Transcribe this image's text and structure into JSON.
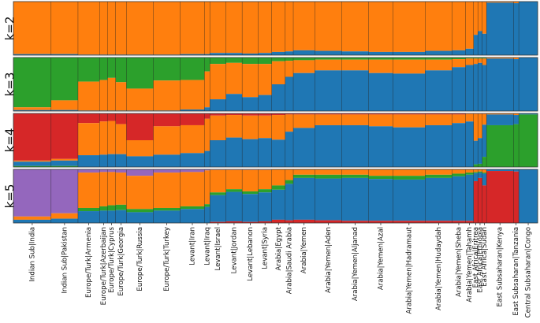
{
  "chart_data": {
    "type": "bar",
    "subtype": "stacked-admixture",
    "title": "",
    "colors": {
      "blue": "#1f77b4",
      "orange": "#ff7f0e",
      "green": "#2ca02c",
      "red": "#d62728",
      "purple": "#9467bd"
    },
    "categories": [
      "Indian Sub|India",
      "Indian Sub|Pakistan",
      "Europe/Turk|Armenia",
      "Europe/Turk|Azerbaijan",
      "Europe/Turk|Cyprus",
      "Europe/Turk|Georgia",
      "Europe/Turk|Russia",
      "Europe/Turk|Turkey",
      "Levant|Iran",
      "Levant|Iraq",
      "Levant|Israel",
      "Levant|Jordan",
      "Levant|Lebanon",
      "Levant|Syria",
      "Arabia|Egypt",
      "Arabia|Saudi Arabia",
      "Arabia|Yemen",
      "Arabia|Yemen|Aden",
      "Arabia|Yemen|Aljanad",
      "Arabia|Yemen|Azal",
      "Arabia|Yemen|Hadramaut",
      "Arabia|Yemen|Hudaydah",
      "Arabia|Yemen|Sheba",
      "Arabia|Yemen|Tahamh",
      "East Africa|Eritrea",
      "East Africa|Ethiopia",
      "East Africa|Sudan",
      "East Subsaharan|Kenya",
      "East Subsaharan|Tanzania",
      "Central Subsaharan|Congo"
    ],
    "sample_share": [
      7,
      5,
      4,
      1.5,
      1.5,
      2,
      5,
      5,
      4.5,
      1,
      3,
      3,
      3,
      2.5,
      2.5,
      1.5,
      4,
      5,
      5,
      4.5,
      6,
      5,
      2.5,
      1.5,
      0.8,
      0.8,
      0.8,
      5,
      1,
      3.5
    ],
    "panels": [
      {
        "label": "k=2",
        "components": [
          "orange",
          "blue"
        ],
        "values": [
          [
            0.98,
            0.02
          ],
          [
            0.98,
            0.02
          ],
          [
            0.99,
            0.01
          ],
          [
            0.99,
            0.01
          ],
          [
            0.99,
            0.01
          ],
          [
            0.99,
            0.01
          ],
          [
            0.99,
            0.01
          ],
          [
            0.99,
            0.01
          ],
          [
            0.98,
            0.02
          ],
          [
            0.98,
            0.02
          ],
          [
            0.96,
            0.04
          ],
          [
            0.96,
            0.04
          ],
          [
            0.97,
            0.03
          ],
          [
            0.96,
            0.04
          ],
          [
            0.94,
            0.06
          ],
          [
            0.93,
            0.07
          ],
          [
            0.91,
            0.09
          ],
          [
            0.92,
            0.08
          ],
          [
            0.93,
            0.07
          ],
          [
            0.94,
            0.06
          ],
          [
            0.94,
            0.06
          ],
          [
            0.92,
            0.08
          ],
          [
            0.91,
            0.09
          ],
          [
            0.88,
            0.12
          ],
          [
            0.62,
            0.38
          ],
          [
            0.55,
            0.45
          ],
          [
            0.6,
            0.4
          ],
          [
            0.02,
            0.98
          ],
          [
            0.03,
            0.97
          ],
          [
            0,
            1
          ]
        ]
      },
      {
        "label": "k=3",
        "components": [
          "green",
          "orange",
          "blue"
        ],
        "values": [
          [
            0.93,
            0.05,
            0.02
          ],
          [
            0.8,
            0.18,
            0.02
          ],
          [
            0.45,
            0.54,
            0.01
          ],
          [
            0.42,
            0.57,
            0.01
          ],
          [
            0.38,
            0.61,
            0.01
          ],
          [
            0.46,
            0.53,
            0.01
          ],
          [
            0.58,
            0.41,
            0.01
          ],
          [
            0.43,
            0.56,
            0.01
          ],
          [
            0.42,
            0.55,
            0.03
          ],
          [
            0.26,
            0.67,
            0.07
          ],
          [
            0.12,
            0.66,
            0.22
          ],
          [
            0.1,
            0.58,
            0.32
          ],
          [
            0.12,
            0.62,
            0.26
          ],
          [
            0.12,
            0.58,
            0.3
          ],
          [
            0.07,
            0.43,
            0.5
          ],
          [
            0.06,
            0.3,
            0.64
          ],
          [
            0.05,
            0.24,
            0.71
          ],
          [
            0.04,
            0.2,
            0.76
          ],
          [
            0.04,
            0.2,
            0.76
          ],
          [
            0.04,
            0.25,
            0.71
          ],
          [
            0.04,
            0.26,
            0.7
          ],
          [
            0.04,
            0.2,
            0.76
          ],
          [
            0.03,
            0.15,
            0.82
          ],
          [
            0.02,
            0.12,
            0.86
          ],
          [
            0.02,
            0.1,
            0.88
          ],
          [
            0.02,
            0.08,
            0.9
          ],
          [
            0.02,
            0.12,
            0.86
          ],
          [
            0,
            0.02,
            0.98
          ],
          [
            0,
            0.03,
            0.97
          ],
          [
            0,
            0,
            1
          ]
        ]
      },
      {
        "label": "k=4",
        "components": [
          "red",
          "orange",
          "blue",
          "green"
        ],
        "values": [
          [
            0.88,
            0.02,
            0.08,
            0.02
          ],
          [
            0.85,
            0.03,
            0.1,
            0.02
          ],
          [
            0.18,
            0.6,
            0.22,
            0
          ],
          [
            0.15,
            0.62,
            0.23,
            0
          ],
          [
            0.14,
            0.62,
            0.24,
            0
          ],
          [
            0.2,
            0.56,
            0.24,
            0
          ],
          [
            0.5,
            0.3,
            0.2,
            0
          ],
          [
            0.24,
            0.53,
            0.23,
            0
          ],
          [
            0.22,
            0.52,
            0.26,
            0
          ],
          [
            0.1,
            0.6,
            0.3,
            0
          ],
          [
            0.04,
            0.46,
            0.5,
            0
          ],
          [
            0.03,
            0.42,
            0.55,
            0
          ],
          [
            0.04,
            0.44,
            0.52,
            0
          ],
          [
            0.04,
            0.42,
            0.54,
            0
          ],
          [
            0.03,
            0.46,
            0.51,
            0
          ],
          [
            0.02,
            0.32,
            0.66,
            0
          ],
          [
            0.02,
            0.25,
            0.73,
            0
          ],
          [
            0.02,
            0.2,
            0.78,
            0
          ],
          [
            0.02,
            0.2,
            0.78,
            0
          ],
          [
            0.02,
            0.22,
            0.76,
            0
          ],
          [
            0.02,
            0.24,
            0.74,
            0
          ],
          [
            0.02,
            0.2,
            0.78,
            0
          ],
          [
            0.02,
            0.16,
            0.82,
            0
          ],
          [
            0.01,
            0.14,
            0.85,
            0
          ],
          [
            0.01,
            0.5,
            0.44,
            0.05
          ],
          [
            0.01,
            0.45,
            0.48,
            0.06
          ],
          [
            0.01,
            0.2,
            0.6,
            0.19
          ],
          [
            0,
            0.02,
            0.2,
            0.78
          ],
          [
            0,
            0.03,
            0.17,
            0.8
          ],
          [
            0,
            0,
            0.02,
            0.98
          ]
        ]
      },
      {
        "label": "k=5",
        "components": [
          "purple",
          "orange",
          "green",
          "blue",
          "red"
        ],
        "values": [
          [
            0.88,
            0.06,
            0,
            0.06,
            0
          ],
          [
            0.82,
            0.1,
            0,
            0.08,
            0
          ],
          [
            0.06,
            0.66,
            0.06,
            0.22,
            0
          ],
          [
            0.05,
            0.64,
            0.08,
            0.23,
            0
          ],
          [
            0.05,
            0.62,
            0.1,
            0.23,
            0
          ],
          [
            0.06,
            0.6,
            0.1,
            0.24,
            0
          ],
          [
            0.12,
            0.62,
            0.06,
            0.2,
            0
          ],
          [
            0.06,
            0.66,
            0.05,
            0.23,
            0
          ],
          [
            0.05,
            0.64,
            0.05,
            0.26,
            0
          ],
          [
            0.02,
            0.63,
            0.05,
            0.3,
            0
          ],
          [
            0.01,
            0.42,
            0.05,
            0.5,
            0.02
          ],
          [
            0.01,
            0.36,
            0.05,
            0.55,
            0.03
          ],
          [
            0.01,
            0.4,
            0.05,
            0.52,
            0.02
          ],
          [
            0.01,
            0.36,
            0.06,
            0.54,
            0.03
          ],
          [
            0,
            0.3,
            0.08,
            0.56,
            0.06
          ],
          [
            0,
            0.2,
            0.07,
            0.68,
            0.05
          ],
          [
            0,
            0.1,
            0.06,
            0.78,
            0.06
          ],
          [
            0,
            0.1,
            0.07,
            0.78,
            0.05
          ],
          [
            0,
            0.1,
            0.06,
            0.8,
            0.04
          ],
          [
            0,
            0.12,
            0.06,
            0.78,
            0.04
          ],
          [
            0,
            0.12,
            0.07,
            0.77,
            0.04
          ],
          [
            0,
            0.1,
            0.06,
            0.8,
            0.04
          ],
          [
            0,
            0.08,
            0.05,
            0.83,
            0.04
          ],
          [
            0,
            0.06,
            0.04,
            0.86,
            0.04
          ],
          [
            0,
            0.05,
            0.02,
            0.15,
            0.78
          ],
          [
            0,
            0.04,
            0.02,
            0.1,
            0.84
          ],
          [
            0,
            0.06,
            0.02,
            0.22,
            0.7
          ],
          [
            0,
            0,
            0,
            0.03,
            0.97
          ],
          [
            0,
            0,
            0,
            0.04,
            0.96
          ],
          [
            0,
            0,
            0,
            1,
            0
          ]
        ]
      }
    ],
    "xlabel": "",
    "ylabel": "",
    "ylim": [
      0,
      1
    ],
    "legend": "none"
  }
}
